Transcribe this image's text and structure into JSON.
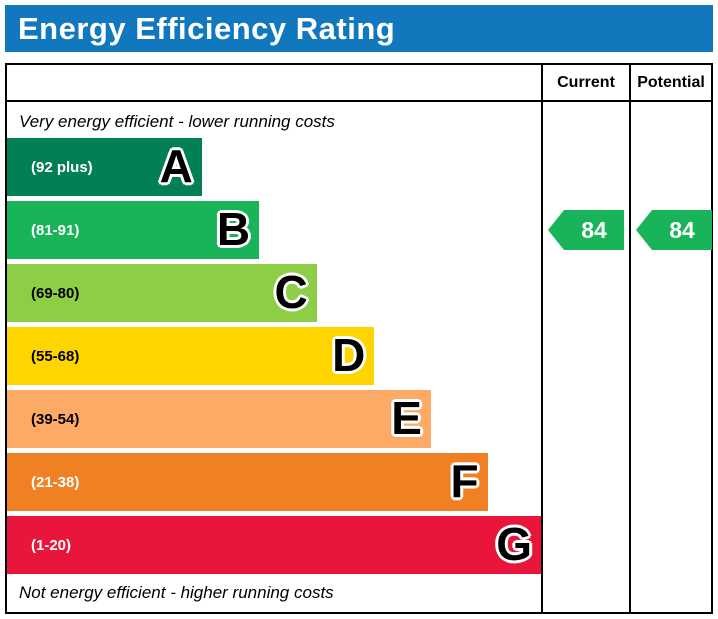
{
  "header": {
    "title": "Energy Efficiency Rating"
  },
  "table": {
    "current_label": "Current",
    "potential_label": "Potential"
  },
  "captions": {
    "top": "Very energy efficient - lower running costs",
    "bottom": "Not energy efficient - higher running costs"
  },
  "chart_data": {
    "type": "bar",
    "title": "Energy Efficiency Rating",
    "orientation": "horizontal",
    "bands": [
      {
        "letter": "A",
        "range": "(92 plus)",
        "color": "#008054",
        "text_color": "#ffffff",
        "width_pct": 36.5
      },
      {
        "letter": "B",
        "range": "(81-91)",
        "color": "#19b459",
        "text_color": "#ffffff",
        "width_pct": 47.2
      },
      {
        "letter": "C",
        "range": "(69-80)",
        "color": "#8dce46",
        "text_color": "#000000",
        "width_pct": 58.0
      },
      {
        "letter": "D",
        "range": "(55-68)",
        "color": "#ffd500",
        "text_color": "#000000",
        "width_pct": 68.8
      },
      {
        "letter": "E",
        "range": "(39-54)",
        "color": "#fcaa65",
        "text_color": "#000000",
        "width_pct": 79.4
      },
      {
        "letter": "F",
        "range": "(21-38)",
        "color": "#ef8023",
        "text_color": "#ffffff",
        "width_pct": 90.0
      },
      {
        "letter": "G",
        "range": "(1-20)",
        "color": "#e9153b",
        "text_color": "#ffffff",
        "width_pct": 100
      }
    ],
    "current": {
      "value": 84,
      "band": "B",
      "color": "#19b459"
    },
    "potential": {
      "value": 84,
      "band": "B",
      "color": "#19b459"
    },
    "legend_position": "none",
    "grid": false
  }
}
